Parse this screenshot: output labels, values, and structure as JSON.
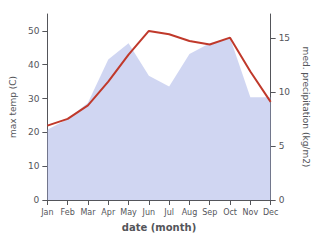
{
  "chart_data": {
    "type": "line",
    "xlabel": "date (month)",
    "ylabel": "max temp (C)",
    "y2label": "med. precipitation (kg/m2)",
    "categories": [
      "Jan",
      "Feb",
      "Mar",
      "Apr",
      "May",
      "Jun",
      "Jul",
      "Aug",
      "Sep",
      "Oct",
      "Nov",
      "Dec"
    ],
    "series": [
      {
        "type": "area",
        "axis": "y2",
        "color": "#aab4e8",
        "values": [
          6.5,
          7.5,
          9.0,
          13.0,
          14.5,
          11.5,
          10.5,
          13.5,
          14.5,
          15.0,
          9.5,
          9.5
        ]
      },
      {
        "type": "line",
        "color": "#c0392b",
        "values": [
          22,
          24,
          28,
          35,
          43,
          50,
          49,
          47,
          46,
          48,
          38,
          29
        ]
      }
    ],
    "ylim": [
      0,
      55
    ],
    "yticks": [
      0,
      10,
      20,
      30,
      40,
      50
    ],
    "y2lim": [
      0,
      17.2
    ],
    "y2ticks": [
      0,
      5,
      10,
      15
    ],
    "grid": false
  }
}
